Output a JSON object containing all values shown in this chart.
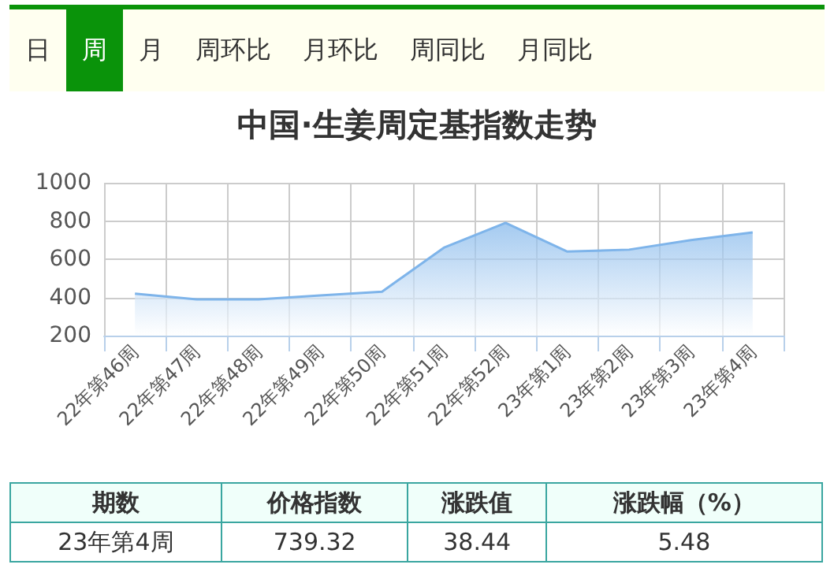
{
  "chart_data": {
    "type": "area",
    "title": "中国·生姜周定基指数走势",
    "categories": [
      "22年第46周",
      "22年第47周",
      "22年第48周",
      "22年第49周",
      "22年第50周",
      "22年第51周",
      "22年第52周",
      "23年第1周",
      "23年第2周",
      "23年第3周",
      "23年第4周"
    ],
    "series": [
      {
        "color": "#7eb4ea",
        "values": [
          420,
          390,
          390,
          410,
          430,
          660,
          790,
          640,
          650,
          700,
          740
        ]
      }
    ],
    "ylim": [
      200,
      1000
    ],
    "yticks": [
      200,
      400,
      600,
      800,
      1000
    ],
    "grid": true,
    "marker": "none",
    "line_style": "solid",
    "annotations": [
      "日",
      "周",
      "月",
      "周环比",
      "月环比",
      "周同比",
      "月同比",
      "期数",
      "价格指数",
      "涨跌值",
      "涨跌幅（%）",
      "23年第4周",
      "739.32",
      "38.44",
      "5.48"
    ]
  }
}
